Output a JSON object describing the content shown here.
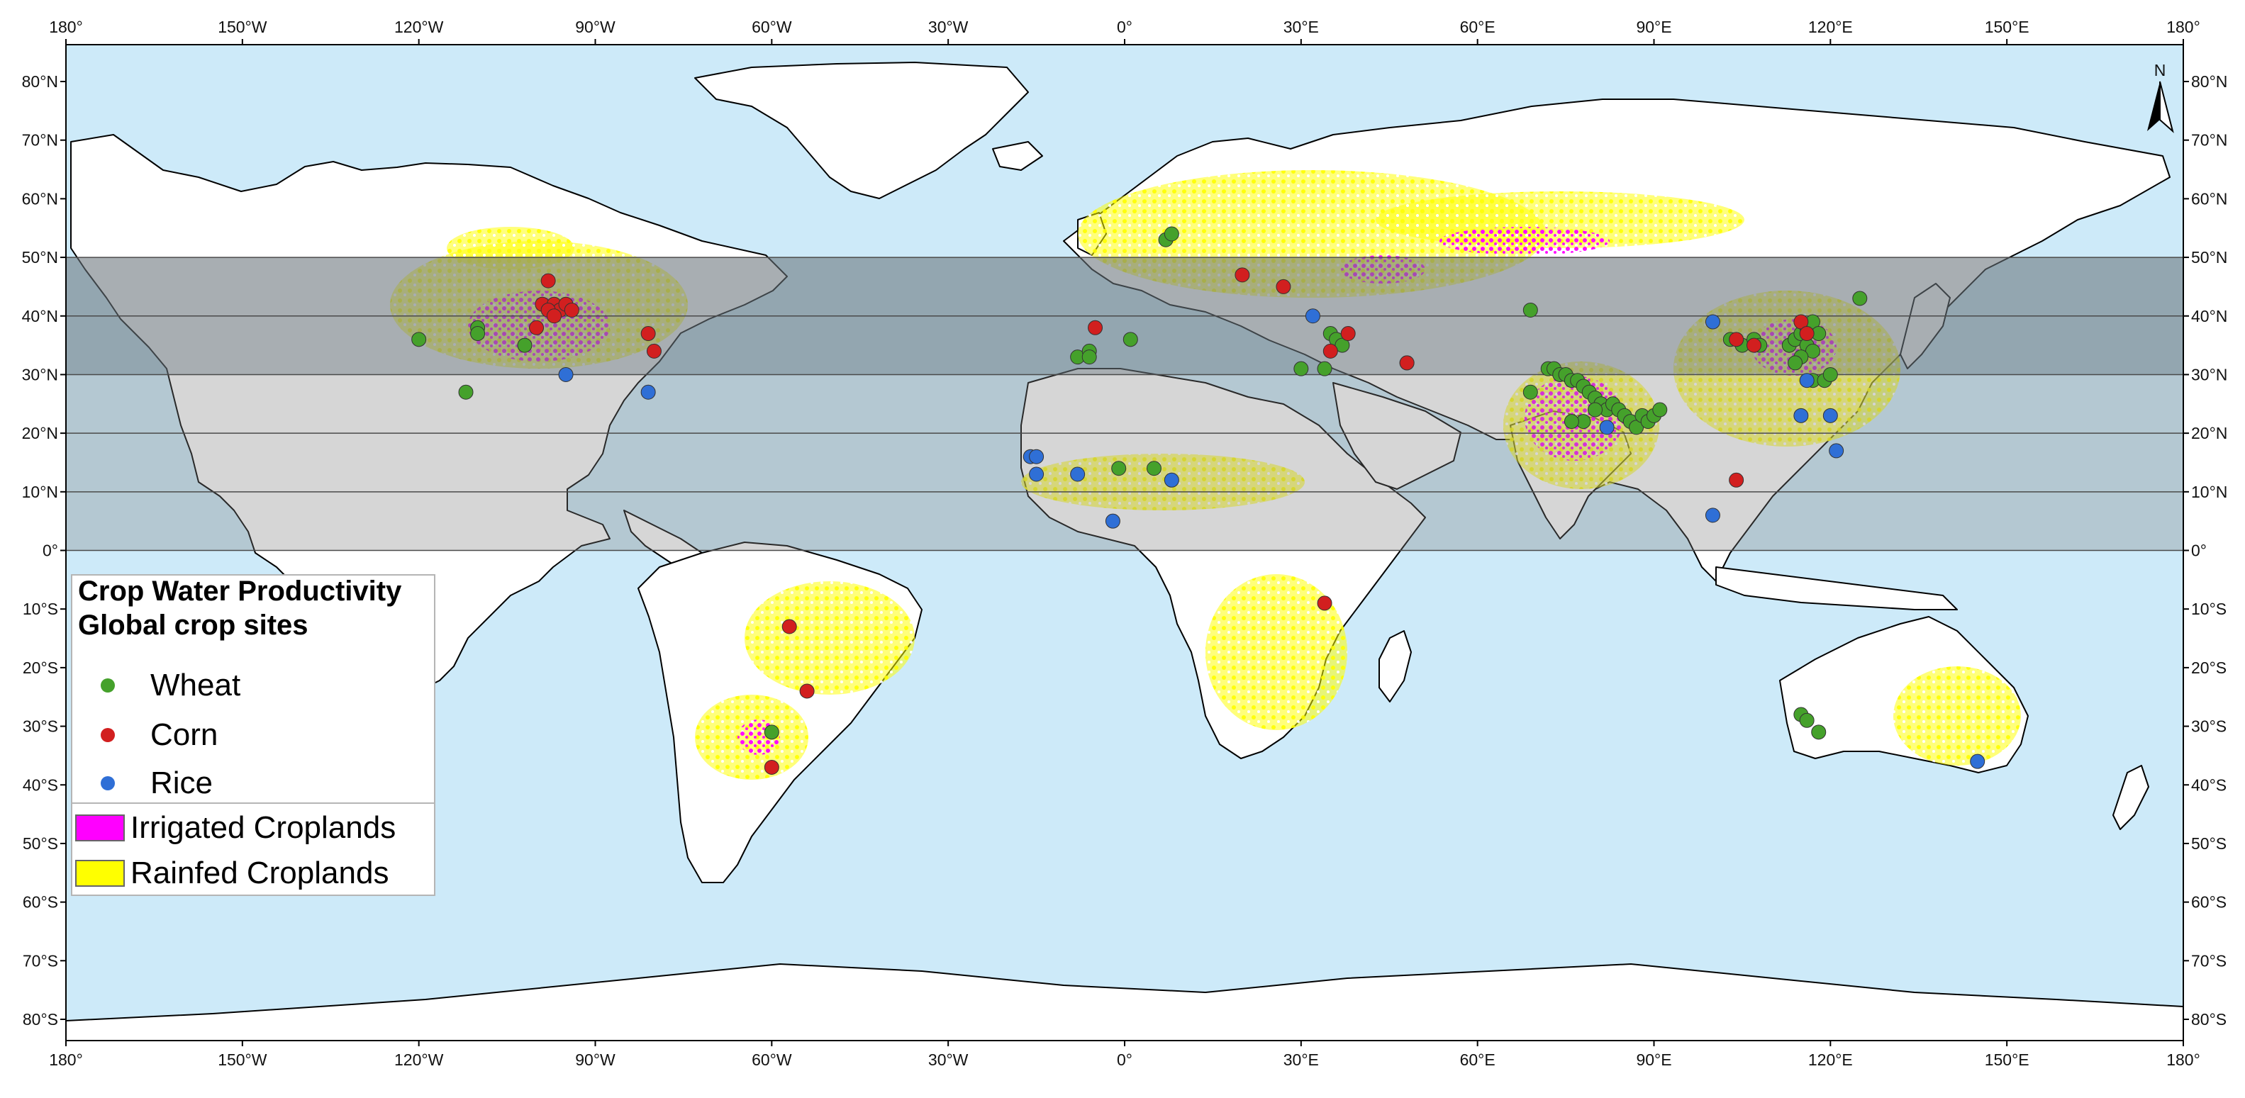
{
  "map": {
    "top_lon_labels": [
      "180°",
      "150°W",
      "120°W",
      "90°W",
      "60°W",
      "30°W",
      "0°",
      "30°E",
      "60°E",
      "90°E",
      "120°E",
      "150°E",
      "180°"
    ],
    "bottom_lon_labels": [
      "180°",
      "150°W",
      "120°W",
      "90°W",
      "60°W",
      "30°W",
      "0°",
      "30°E",
      "60°E",
      "90°E",
      "120°E",
      "150°E",
      "180°"
    ],
    "left_lat_labels": [
      "80°N",
      "70°N",
      "60°N",
      "50°N",
      "40°N",
      "30°N",
      "20°N",
      "10°N",
      "0°",
      "10°S",
      "20°S",
      "30°S",
      "40°S",
      "50°S",
      "60°S",
      "70°S",
      "80°S"
    ],
    "right_lat_labels": [
      "80°N",
      "70°N",
      "60°N",
      "50°N",
      "40°N",
      "30°N",
      "20°N",
      "10°N",
      "0°",
      "10°S",
      "20°S",
      "30°S",
      "40°S",
      "50°S",
      "60°S",
      "70°S",
      "80°S"
    ],
    "north_arrow_label": "N",
    "colors": {
      "ocean": "#cdeaf9",
      "land": "#ffffff",
      "irrigated": "#ff00ff",
      "rainfed": "#ffff00",
      "band": "#7f7f7f",
      "wheat": "#45a12b",
      "corn": "#d21f1f",
      "rice": "#2f6fd6"
    }
  },
  "legend": {
    "title_line1": "Crop Water Productivity",
    "title_line2": "Global crop sites",
    "sites": [
      {
        "label": "Wheat",
        "color": "#45a12b"
      },
      {
        "label": "Corn",
        "color": "#d21f1f"
      },
      {
        "label": "Rice",
        "color": "#2f6fd6"
      }
    ],
    "layers": [
      {
        "label": "Irrigated Croplands",
        "color": "#ff00ff"
      },
      {
        "label": "Rainfed Croplands",
        "color": "#ffff00"
      }
    ]
  },
  "sites": {
    "wheat": [
      [
        -120,
        36
      ],
      [
        -110,
        38
      ],
      [
        -110,
        37
      ],
      [
        -102,
        35
      ],
      [
        -112,
        27
      ],
      [
        -8,
        33
      ],
      [
        -6,
        34
      ],
      [
        -6,
        33
      ],
      [
        1,
        36
      ],
      [
        7,
        53
      ],
      [
        8,
        54
      ],
      [
        30,
        31
      ],
      [
        34,
        31
      ],
      [
        35,
        37
      ],
      [
        36,
        36
      ],
      [
        37,
        35
      ],
      [
        48,
        32
      ],
      [
        69,
        41
      ],
      [
        69,
        27
      ],
      [
        72,
        31
      ],
      [
        73,
        31
      ],
      [
        74,
        30
      ],
      [
        75,
        30
      ],
      [
        76,
        29
      ],
      [
        77,
        29
      ],
      [
        78,
        28
      ],
      [
        79,
        27
      ],
      [
        80,
        26
      ],
      [
        81,
        25
      ],
      [
        82,
        24
      ],
      [
        83,
        25
      ],
      [
        84,
        24
      ],
      [
        85,
        23
      ],
      [
        86,
        22
      ],
      [
        87,
        21
      ],
      [
        88,
        23
      ],
      [
        89,
        22
      ],
      [
        90,
        23
      ],
      [
        91,
        24
      ],
      [
        78,
        22
      ],
      [
        80,
        24
      ],
      [
        76,
        22
      ],
      [
        103,
        36
      ],
      [
        105,
        35
      ],
      [
        107,
        36
      ],
      [
        108,
        35
      ],
      [
        113,
        35
      ],
      [
        114,
        36
      ],
      [
        115,
        37
      ],
      [
        116,
        38
      ],
      [
        117,
        39
      ],
      [
        118,
        37
      ],
      [
        116,
        35
      ],
      [
        117,
        34
      ],
      [
        115,
        33
      ],
      [
        114,
        32
      ],
      [
        117,
        29
      ],
      [
        119,
        29
      ],
      [
        125,
        43
      ],
      [
        120,
        30
      ],
      [
        5,
        14
      ],
      [
        -1,
        14
      ],
      [
        115,
        -28
      ],
      [
        116,
        -29
      ],
      [
        118,
        -31
      ],
      [
        -60,
        -31
      ]
    ],
    "corn": [
      [
        -98,
        46
      ],
      [
        -99,
        42
      ],
      [
        -97,
        42
      ],
      [
        -96,
        41
      ],
      [
        -95,
        42
      ],
      [
        -98,
        41
      ],
      [
        -94,
        41
      ],
      [
        -100,
        38
      ],
      [
        -97,
        40
      ],
      [
        -81,
        37
      ],
      [
        -80,
        34
      ],
      [
        -5,
        38
      ],
      [
        20,
        47
      ],
      [
        27,
        45
      ],
      [
        35,
        34
      ],
      [
        38,
        37
      ],
      [
        48,
        32
      ],
      [
        104,
        36
      ],
      [
        107,
        35
      ],
      [
        115,
        39
      ],
      [
        116,
        37
      ],
      [
        104,
        12
      ],
      [
        -57,
        -13
      ],
      [
        -54,
        -24
      ],
      [
        -60,
        -37
      ],
      [
        34,
        -9
      ]
    ],
    "rice": [
      [
        -95,
        30
      ],
      [
        -81,
        27
      ],
      [
        -16,
        16
      ],
      [
        -15,
        16
      ],
      [
        -15,
        13
      ],
      [
        -8,
        13
      ],
      [
        -2,
        5
      ],
      [
        8,
        12
      ],
      [
        32,
        40
      ],
      [
        82,
        21
      ],
      [
        100,
        39
      ],
      [
        100,
        6
      ],
      [
        115,
        23
      ],
      [
        116,
        29
      ],
      [
        120,
        23
      ],
      [
        121,
        17
      ],
      [
        145,
        -36
      ]
    ]
  }
}
